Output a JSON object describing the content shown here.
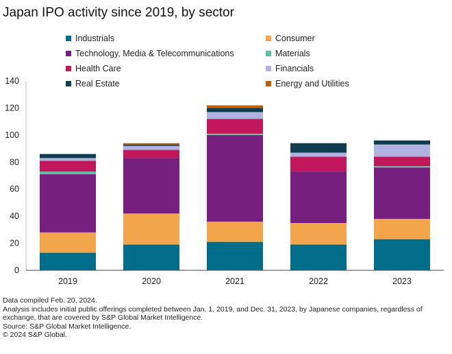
{
  "chart_data": {
    "type": "bar",
    "stacked": true,
    "title": "Japan IPO activity since 2019, by sector",
    "categories": [
      "2019",
      "2020",
      "2021",
      "2022",
      "2023"
    ],
    "ylim": [
      0,
      140
    ],
    "yticks": [
      0,
      20,
      40,
      60,
      80,
      100,
      120,
      140
    ],
    "xlabel": "",
    "ylabel": "",
    "grid": false,
    "legend_position": "top",
    "series": [
      {
        "name": "Industrials",
        "color": "#006d8a",
        "values": [
          13,
          19,
          21,
          19,
          23
        ]
      },
      {
        "name": "Consumer",
        "color": "#f2a54a",
        "values": [
          15,
          23,
          15,
          16,
          15
        ]
      },
      {
        "name": "Technology, Media & Telecommunications",
        "color": "#771f7e",
        "values": [
          43,
          41,
          64,
          38,
          38
        ]
      },
      {
        "name": "Materials",
        "color": "#5fbfa2",
        "values": [
          2,
          0,
          1,
          0,
          1
        ]
      },
      {
        "name": "Health Care",
        "color": "#c2185b",
        "values": [
          8,
          6,
          11,
          11,
          7
        ]
      },
      {
        "name": "Financials",
        "color": "#b0b3e2",
        "values": [
          2,
          3,
          5,
          3,
          9
        ]
      },
      {
        "name": "Real Estate",
        "color": "#0d3d4f",
        "values": [
          3,
          1,
          3,
          7,
          3
        ]
      },
      {
        "name": "Energy and Utilities",
        "color": "#c0620d",
        "values": [
          0,
          1,
          2,
          0,
          0
        ]
      }
    ]
  },
  "footnotes": {
    "line1": "Data compiled Feb. 20, 2024.",
    "line2": "Analysis includes initial public offerings completed between Jan. 1, 2019, and Dec. 31, 2023, by Japanese companies, regardless of exchange, that are covered by S&P Global Market Intelligence.",
    "line3": "Source: S&P Global Market Intelligence.",
    "line4": "© 2024 S&P Global."
  }
}
